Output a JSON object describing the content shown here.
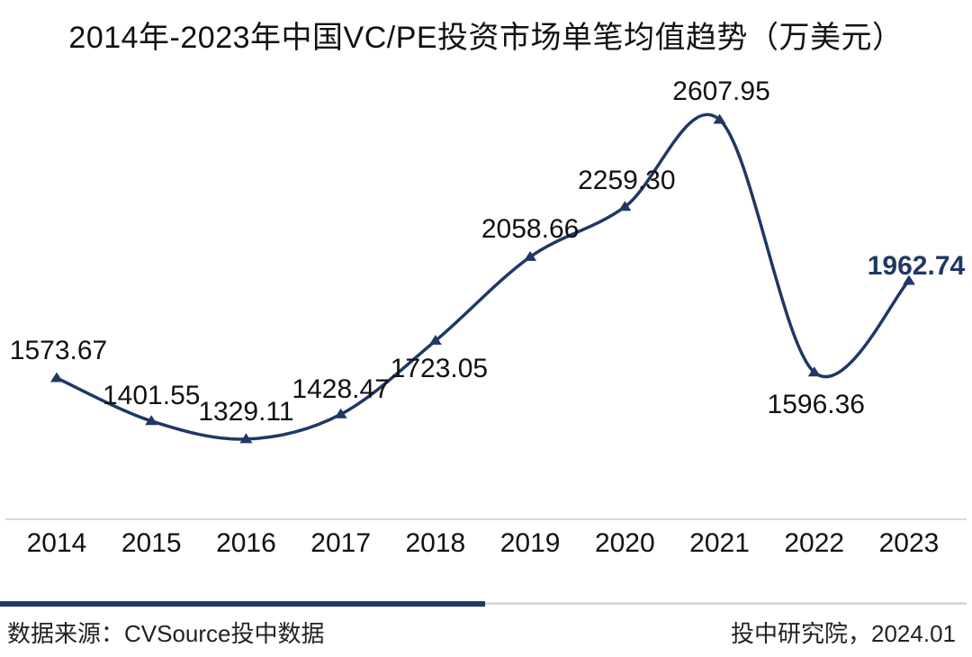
{
  "chart_data": {
    "type": "line",
    "smooth": true,
    "marker": "triangle",
    "grid": false,
    "legend": "none",
    "title": "2014年-2023年中国VC/PE投资市场单笔均值趋势（万美元）",
    "xlabel": "",
    "ylabel": "",
    "categories": [
      "2014",
      "2015",
      "2016",
      "2017",
      "2018",
      "2019",
      "2020",
      "2021",
      "2022",
      "2023"
    ],
    "values": [
      1573.67,
      1401.55,
      1329.11,
      1428.47,
      1723.05,
      2058.66,
      2259.3,
      2607.95,
      1596.36,
      1962.74
    ],
    "point_labels": [
      "1573.67",
      "1401.55",
      "1329.11",
      "1428.47",
      "1723.05",
      "2058.66",
      "2259.30",
      "2607.95",
      "1596.36",
      "1962.74"
    ],
    "colors": {
      "line": "#1f3864",
      "marker": "#1f3864",
      "label": "#111111",
      "last_label": "#1f3864",
      "axis_line": "#d9d9d9"
    }
  },
  "footer": {
    "source": "数据来源：CVSource投中数据",
    "credit": "投中研究院，2024.01",
    "bar_left_color": "#1f3864",
    "bar_right_color": "#d9d9d9"
  }
}
